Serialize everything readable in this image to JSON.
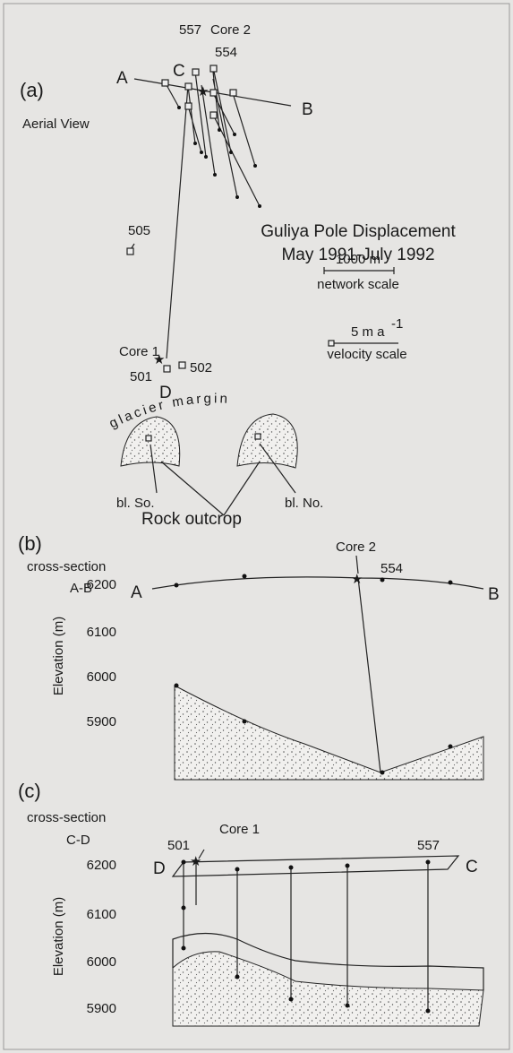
{
  "panel_a": {
    "label": "(a)",
    "view": "Aerial View",
    "end_a": "A",
    "end_b": "B",
    "end_c": "C",
    "end_d": "D",
    "stake_557": "557",
    "core_2": "Core 2",
    "stake_554": "554",
    "stake_505": "505",
    "title": "Guliya Pole Displacement",
    "dates": "May 1991-July 1992",
    "network_scale_value": "1000 m",
    "network_scale_label": "network scale",
    "velocity_scale_value": "5 m a",
    "velocity_scale_exponent": "-1",
    "velocity_scale_label": "velocity scale",
    "core_1": "Core 1",
    "stake_501": "501",
    "stake_502": "502",
    "margin": "glacier margin",
    "outcrop_south": "bl. So.",
    "outcrop_north": "bl. No.",
    "outcrop_label": "Rock outcrop"
  },
  "panel_b": {
    "label": "(b)",
    "title": "cross-section",
    "section": "A-B",
    "core": "Core 2",
    "stake": "554",
    "end_left": "A",
    "end_right": "B",
    "y_axis_label": "Elevation (m)",
    "yticks": [
      "6200",
      "6100",
      "6000",
      "5900"
    ]
  },
  "panel_c": {
    "label": "(c)",
    "title": "cross-section",
    "section": "C-D",
    "core": "Core 1",
    "stake_left": "501",
    "stake_right": "557",
    "end_left": "D",
    "end_right": "C",
    "y_axis_label": "Elevation (m)",
    "yticks": [
      "6200",
      "6100",
      "6000",
      "5900"
    ]
  }
}
